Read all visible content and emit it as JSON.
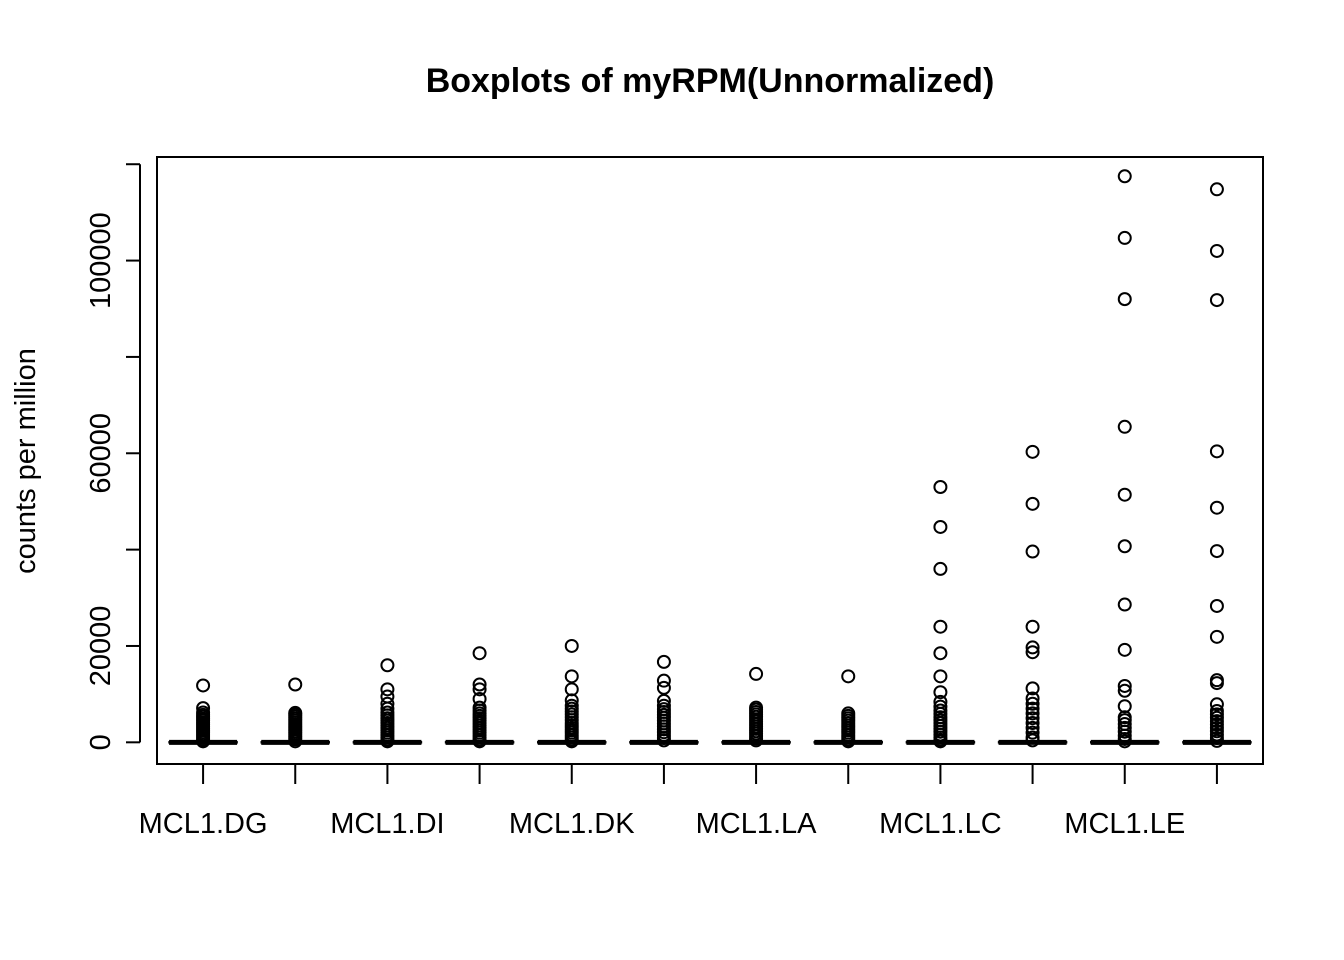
{
  "chart_data": {
    "type": "boxplot",
    "title": "Boxplots of myRPM(Unnormalized)",
    "xlabel": "",
    "ylabel": "counts per million",
    "ylim": [
      -4500,
      121500
    ],
    "yticks": [
      0,
      20000,
      40000,
      60000,
      80000,
      100000,
      120000
    ],
    "ytick_labels": [
      "0",
      "20000",
      "",
      "60000",
      "",
      "100000",
      ""
    ],
    "categories": [
      "MCL1.DG",
      "",
      "MCL1.DI",
      "",
      "MCL1.DK",
      "",
      "MCL1.LA",
      "",
      "MCL1.LC",
      "",
      "MCL1.LE",
      ""
    ],
    "grid": false,
    "legend": "none",
    "series": [
      {
        "median": 0,
        "q1": 0,
        "q3": 0,
        "whisker_low": 0,
        "whisker_high": 0,
        "outliers": [
          11800,
          7100,
          6200,
          5700,
          5300,
          4900,
          4500,
          4100,
          3700,
          3300,
          2900,
          2500,
          2100,
          1700,
          1300,
          900,
          500,
          200
        ]
      },
      {
        "median": 0,
        "q1": 0,
        "q3": 0,
        "whisker_low": 0,
        "whisker_high": 0,
        "outliers": [
          12000,
          6100,
          5800,
          5400,
          5000,
          4600,
          4200,
          3800,
          3400,
          3000,
          2600,
          2200,
          1800,
          1400,
          1000,
          600,
          200
        ]
      },
      {
        "median": 0,
        "q1": 0,
        "q3": 0,
        "whisker_low": 0,
        "whisker_high": 0,
        "outliers": [
          16000,
          11000,
          9500,
          8000,
          7000,
          6200,
          5600,
          5000,
          4500,
          4000,
          3500,
          3000,
          2500,
          2000,
          1500,
          1000,
          500,
          200
        ]
      },
      {
        "median": 0,
        "q1": 0,
        "q3": 0,
        "whisker_low": 0,
        "whisker_high": 0,
        "outliers": [
          18500,
          12000,
          11000,
          9000,
          7200,
          6600,
          6000,
          5500,
          5000,
          4500,
          4000,
          3500,
          3000,
          2500,
          2000,
          1500,
          1000,
          500,
          200
        ]
      },
      {
        "median": 0,
        "q1": 0,
        "q3": 0,
        "whisker_low": 0,
        "whisker_high": 0,
        "outliers": [
          20000,
          13700,
          11000,
          8700,
          7600,
          7000,
          6400,
          5800,
          5200,
          4600,
          4000,
          3500,
          3000,
          2500,
          2000,
          1500,
          1000,
          500,
          200
        ]
      },
      {
        "median": 0,
        "q1": 0,
        "q3": 0,
        "whisker_low": 0,
        "whisker_high": 0,
        "outliers": [
          16700,
          12800,
          11300,
          8600,
          7600,
          6900,
          6300,
          5700,
          5100,
          4500,
          3900,
          3300,
          2700,
          2100,
          1500,
          900,
          400
        ]
      },
      {
        "median": 0,
        "q1": 0,
        "q3": 0,
        "whisker_low": 0,
        "whisker_high": 0,
        "outliers": [
          14200,
          7200,
          6800,
          6300,
          5800,
          5300,
          4800,
          4300,
          3800,
          3300,
          2800,
          2300,
          1800,
          1300,
          800,
          400
        ]
      },
      {
        "median": 0,
        "q1": 0,
        "q3": 0,
        "whisker_low": 0,
        "whisker_high": 0,
        "outliers": [
          13700,
          6000,
          5500,
          5000,
          4500,
          4000,
          3500,
          3000,
          2500,
          2000,
          1500,
          1000,
          500,
          200
        ]
      },
      {
        "median": 0,
        "q1": 0,
        "q3": 0,
        "whisker_low": 0,
        "whisker_high": 0,
        "outliers": [
          53000,
          44700,
          36000,
          24000,
          18500,
          13700,
          10400,
          8400,
          7400,
          6600,
          5900,
          5200,
          4600,
          4000,
          3400,
          2800,
          2200,
          1600,
          1000,
          500,
          200
        ]
      },
      {
        "median": 0,
        "q1": 0,
        "q3": 0,
        "whisker_low": 0,
        "whisker_high": 0,
        "outliers": [
          60300,
          49500,
          39600,
          24000,
          19700,
          18700,
          11200,
          9100,
          8000,
          7000,
          6000,
          5000,
          4000,
          3000,
          2000,
          1000,
          400
        ]
      },
      {
        "median": 0,
        "q1": 0,
        "q3": 0,
        "whisker_low": 0,
        "whisker_high": 0,
        "outliers": [
          117500,
          104700,
          92000,
          65500,
          51400,
          40700,
          28600,
          19200,
          11700,
          10700,
          7500,
          5200,
          4600,
          3800,
          3000,
          2200,
          1400,
          700,
          200
        ]
      },
      {
        "median": 0,
        "q1": 0,
        "q3": 0,
        "whisker_low": 0,
        "whisker_high": 0,
        "outliers": [
          114800,
          102000,
          91800,
          60400,
          48700,
          39700,
          28300,
          21900,
          12900,
          12300,
          7900,
          6500,
          5800,
          5100,
          4400,
          3700,
          3000,
          2300,
          1600,
          900,
          300
        ]
      }
    ]
  }
}
